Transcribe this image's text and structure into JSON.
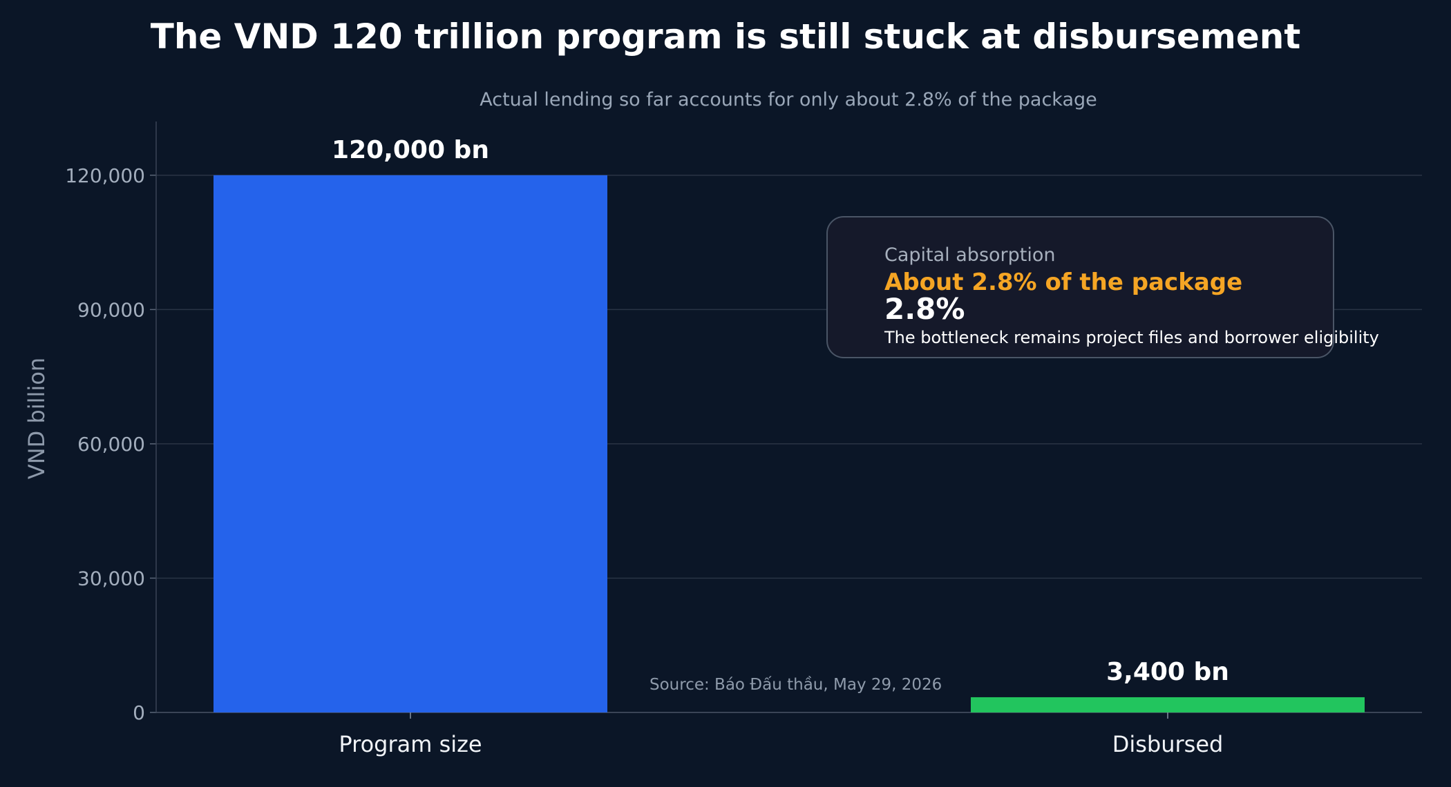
{
  "colors": {
    "background": "#0b1627",
    "program_bar": "#2563eb",
    "disbursed_bar": "#22c55e",
    "highlight": "#f5a524",
    "grid": "#2a3445"
  },
  "chart_data": {
    "type": "bar",
    "title": "The VND 120 trillion program is still stuck at disbursement",
    "subtitle": "Actual lending so far accounts for only about 2.8% of the package",
    "xlabel": "",
    "ylabel": "VND billion",
    "categories": [
      "Program size",
      "Disbursed"
    ],
    "values": [
      120000,
      3400
    ],
    "data_labels": [
      "120,000 bn",
      "3,400 bn"
    ],
    "bar_colors": [
      "#2563eb",
      "#22c55e"
    ],
    "ylim": [
      0,
      132000
    ],
    "yticks": [
      0,
      30000,
      60000,
      90000,
      120000
    ],
    "ytick_labels": [
      "0",
      "30,000",
      "60,000",
      "90,000",
      "120,000"
    ],
    "grid": true,
    "legend": "none",
    "annotation": {
      "label": "Capital absorption",
      "headline": "About 2.8% of the package",
      "value": "2.8%",
      "note": "The bottleneck remains project files and borrower eligibility"
    },
    "source": "Source: Báo Đấu thầu, May 29, 2026"
  }
}
